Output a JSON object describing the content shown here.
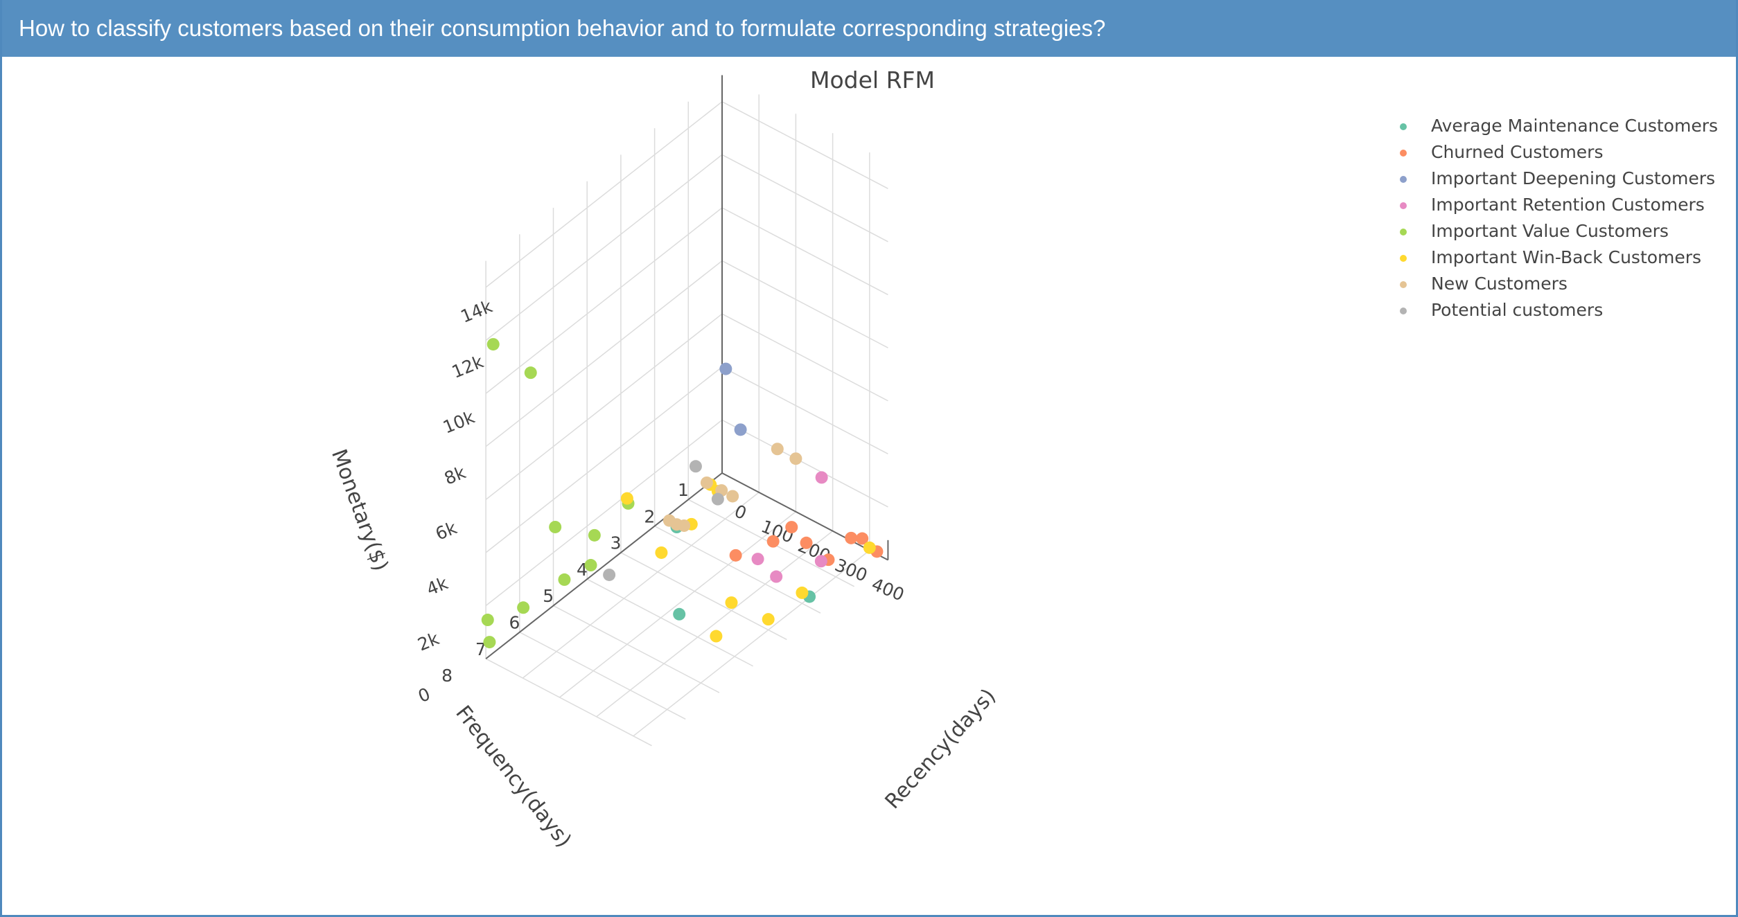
{
  "header": {
    "question": "How to classify customers based on their consumption behavior and to formulate corresponding strategies?"
  },
  "chart_data": {
    "type": "scatter3d",
    "title": "Model RFM",
    "axes": {
      "x": {
        "label": "Frequency(days)",
        "ticks": [
          "1",
          "2",
          "3",
          "4",
          "5",
          "6",
          "7",
          "8"
        ],
        "range": [
          1,
          8
        ]
      },
      "y": {
        "label": "Recency(days)",
        "ticks": [
          "0",
          "100",
          "200",
          "300",
          "400"
        ],
        "range": [
          0,
          450
        ]
      },
      "z": {
        "label": "Monetary($)",
        "ticks": [
          "0",
          "2k",
          "4k",
          "6k",
          "8k",
          "10k",
          "12k",
          "14k"
        ],
        "range": [
          0,
          15000
        ]
      }
    },
    "grid": true,
    "legend_position": "top-right",
    "series": [
      {
        "name": "Average Maintenance Customers",
        "color": "#66c2a5",
        "points": [
          [
            3,
            420,
            400
          ],
          [
            5,
            250,
            500
          ],
          [
            3,
            60,
            400
          ]
        ]
      },
      {
        "name": "Churned Customers",
        "color": "#fc8d62",
        "points": [
          [
            1,
            420,
            100
          ],
          [
            1,
            380,
            300
          ],
          [
            1,
            350,
            100
          ],
          [
            2,
            380,
            500
          ],
          [
            2,
            320,
            700
          ],
          [
            2,
            280,
            1000
          ],
          [
            3,
            220,
            500
          ],
          [
            2,
            230,
            100
          ]
        ]
      },
      {
        "name": "Important Deepening Customers",
        "color": "#8da0cb",
        "points": [
          [
            1,
            50,
            2000
          ],
          [
            1,
            10,
            4000
          ]
        ]
      },
      {
        "name": "Important Retention Customers",
        "color": "#e78ac3",
        "points": [
          [
            2,
            360,
            300
          ],
          [
            3,
            330,
            500
          ],
          [
            3,
            280,
            800
          ],
          [
            1,
            270,
            1800
          ]
        ]
      },
      {
        "name": "Important Value Customers",
        "color": "#a6d854",
        "points": [
          [
            8,
            20,
            12000
          ],
          [
            7,
            30,
            10000
          ],
          [
            6,
            5,
            3000
          ],
          [
            4,
            20,
            2000
          ],
          [
            5,
            20,
            1800
          ],
          [
            6,
            30,
            1200
          ],
          [
            7,
            10,
            1000
          ],
          [
            8,
            10,
            700
          ],
          [
            5,
            10,
            600
          ],
          [
            8,
            5,
            1500
          ]
        ]
      },
      {
        "name": "Important Win-Back Customers",
        "color": "#ffd92f",
        "points": [
          [
            1,
            400,
            100
          ],
          [
            3,
            400,
            400
          ],
          [
            4,
            400,
            400
          ],
          [
            5,
            350,
            400
          ],
          [
            4,
            300,
            300
          ],
          [
            2,
            60,
            1000
          ],
          [
            2,
            80,
            900
          ],
          [
            3,
            100,
            800
          ],
          [
            4,
            110,
            800
          ],
          [
            6,
            200,
            5500
          ]
        ]
      },
      {
        "name": "New Customers",
        "color": "#e5c494",
        "points": [
          [
            1,
            200,
            2000
          ],
          [
            1,
            150,
            2000
          ],
          [
            2,
            120,
            1000
          ],
          [
            2,
            90,
            1000
          ],
          [
            3,
            80,
            600
          ],
          [
            3,
            60,
            500
          ],
          [
            3,
            40,
            500
          ],
          [
            2,
            50,
            1000
          ]
        ]
      },
      {
        "name": "Potential customers",
        "color": "#b3b3b3",
        "points": [
          [
            2,
            20,
            1400
          ],
          [
            2,
            80,
            600
          ],
          [
            5,
            60,
            600
          ]
        ]
      }
    ]
  }
}
